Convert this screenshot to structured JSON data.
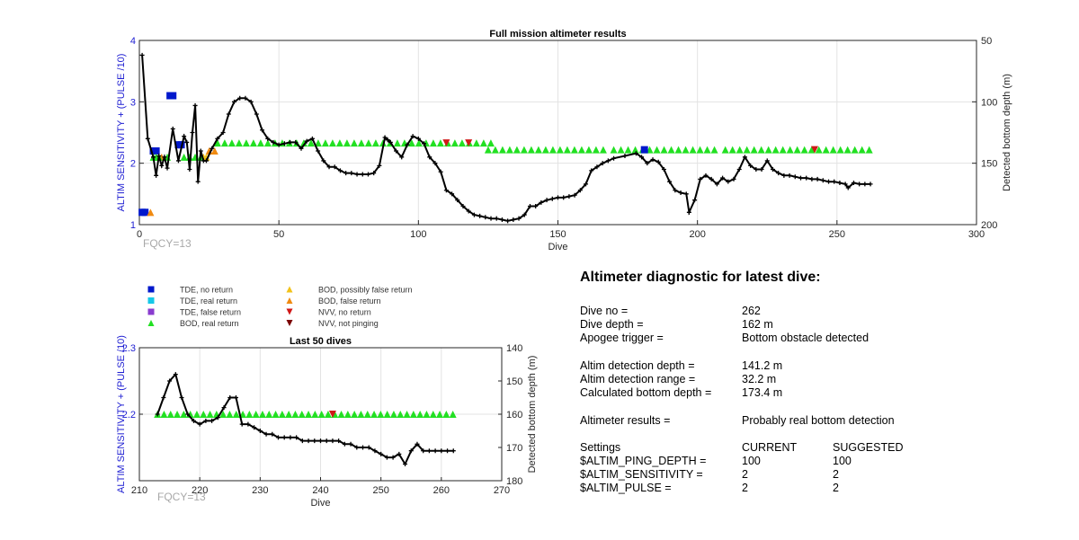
{
  "chart_data": [
    {
      "type": "scatter",
      "title": "Full mission altimeter results",
      "xlabel": "Dive",
      "ylabel": "ALTIM SENSITIVITY + (PULSE /10)",
      "y2label": "Detected bottom depth (m)",
      "xlim": [
        0,
        300
      ],
      "ylim": [
        1,
        4
      ],
      "y2lim": [
        50,
        200
      ],
      "y2_reversed": true,
      "xticks": [
        "0",
        "50",
        "100",
        "150",
        "200",
        "250",
        "300"
      ],
      "yticks": [
        "1",
        "2",
        "3",
        "4"
      ],
      "y2ticks": [
        "50",
        "100",
        "150",
        "200"
      ],
      "grid": true,
      "annotation": "FQCY=13",
      "depth_series": {
        "name": "Detected bottom depth",
        "x": [
          1,
          3,
          5,
          6,
          7,
          8,
          9,
          10,
          12,
          14,
          16,
          17,
          18,
          19,
          20,
          21,
          22,
          23,
          24,
          26,
          28,
          30,
          32,
          34,
          36,
          38,
          40,
          42,
          44,
          46,
          48,
          50,
          52,
          54,
          56,
          58,
          60,
          62,
          64,
          66,
          68,
          70,
          72,
          74,
          76,
          78,
          80,
          82,
          84,
          86,
          88,
          89,
          90,
          92,
          94,
          96,
          98,
          100,
          102,
          104,
          106,
          108,
          110,
          112,
          114,
          116,
          118,
          120,
          122,
          124,
          126,
          128,
          130,
          132,
          134,
          136,
          138,
          140,
          142,
          144,
          146,
          148,
          150,
          152,
          154,
          156,
          158,
          160,
          162,
          164,
          166,
          168,
          170,
          174,
          178,
          180,
          182,
          184,
          186,
          188,
          190,
          192,
          194,
          196,
          197,
          199,
          201,
          203,
          205,
          207,
          209,
          211,
          213,
          215,
          217,
          219,
          221,
          223,
          225,
          227,
          229,
          231,
          233,
          235,
          237,
          239,
          241,
          243,
          245,
          247,
          249,
          251,
          253,
          254,
          256,
          258,
          260,
          262
        ],
        "y": [
          62,
          130,
          145,
          160,
          144,
          152,
          145,
          154,
          122,
          148,
          128,
          133,
          155,
          125,
          103,
          165,
          140,
          148,
          148,
          138,
          130,
          125,
          110,
          100,
          97,
          97,
          100,
          110,
          123,
          130,
          133,
          135,
          134,
          133,
          133,
          138,
          132,
          130,
          140,
          148,
          153,
          153,
          156,
          158,
          158,
          159,
          159,
          159,
          158,
          152,
          129,
          131,
          133,
          140,
          145,
          135,
          128,
          130,
          134,
          145,
          150,
          157,
          172,
          175,
          180,
          185,
          189,
          192,
          193,
          194,
          195,
          195,
          196,
          197,
          196,
          195,
          192,
          185,
          185,
          182,
          180,
          179,
          178,
          178,
          177,
          176,
          172,
          167,
          156,
          153,
          150,
          148,
          146,
          144,
          142,
          145,
          150,
          147,
          149,
          155,
          165,
          172,
          174,
          175,
          190,
          180,
          163,
          160,
          163,
          167,
          162,
          165,
          163,
          155,
          145,
          152,
          155,
          155,
          148,
          155,
          158,
          160,
          160,
          161,
          162,
          162,
          163,
          163,
          164,
          165,
          165,
          166,
          167,
          170,
          166,
          167,
          167,
          167
        ]
      },
      "markers": [
        {
          "name": "BOD, real return",
          "start": 4,
          "end": 262,
          "step": 1.7,
          "y": 2.1,
          "gaps": [
            [
              33,
              262
            ]
          ]
        },
        {
          "name": "BOD, real return",
          "start": 28,
          "end": 126,
          "step": 1.7,
          "y": 2.33
        },
        {
          "name": "BOD, real return",
          "start": 125,
          "end": 167,
          "step": 1.7,
          "y": 2.22
        },
        {
          "name": "BOD, real return",
          "start": 170,
          "end": 208,
          "step": 1.7,
          "y": 2.22
        },
        {
          "name": "BOD, real return",
          "start": 210,
          "end": 262,
          "step": 1.7,
          "y": 2.22
        }
      ],
      "points": [
        {
          "cat": "TDE, no return",
          "x": 1,
          "y": 1.2
        },
        {
          "cat": "TDE, no return",
          "x": 2,
          "y": 1.2
        },
        {
          "cat": "TDE, no return",
          "x": 5,
          "y": 2.2
        },
        {
          "cat": "TDE, no return",
          "x": 6,
          "y": 2.2
        },
        {
          "cat": "TDE, no return",
          "x": 11,
          "y": 3.1
        },
        {
          "cat": "TDE, no return",
          "x": 12,
          "y": 3.1
        },
        {
          "cat": "TDE, no return",
          "x": 14,
          "y": 2.3
        },
        {
          "cat": "TDE, no return",
          "x": 15,
          "y": 2.3
        },
        {
          "cat": "TDE, no return",
          "x": 181,
          "y": 2.22
        },
        {
          "cat": "BOD, false return",
          "x": 4,
          "y": 1.2
        },
        {
          "cat": "BOD, false return",
          "x": 8,
          "y": 2.1
        },
        {
          "cat": "BOD, false return",
          "x": 25,
          "y": 2.2
        },
        {
          "cat": "BOD, false return",
          "x": 27,
          "y": 2.2
        },
        {
          "cat": "BOD, possibly false return",
          "x": 23,
          "y": 2.1
        },
        {
          "cat": "BOD, possibly false return",
          "x": 24,
          "y": 2.1
        },
        {
          "cat": "BOD, real return",
          "x": 5,
          "y": 2.1
        },
        {
          "cat": "BOD, real return",
          "x": 6,
          "y": 2.1
        },
        {
          "cat": "BOD, real return",
          "x": 7,
          "y": 2.1
        },
        {
          "cat": "BOD, real return",
          "x": 10,
          "y": 2.1
        },
        {
          "cat": "BOD, real return",
          "x": 16,
          "y": 2.1
        },
        {
          "cat": "BOD, real return",
          "x": 18,
          "y": 2.1
        },
        {
          "cat": "BOD, real return",
          "x": 20,
          "y": 2.1
        },
        {
          "cat": "BOD, real return",
          "x": 22,
          "y": 2.1
        },
        {
          "cat": "NVV, no return",
          "x": 110,
          "y": 2.33
        },
        {
          "cat": "NVV, no return",
          "x": 118,
          "y": 2.33
        },
        {
          "cat": "NVV, no return",
          "x": 242,
          "y": 2.22
        }
      ]
    },
    {
      "type": "scatter",
      "title": "Last 50 dives",
      "xlabel": "Dive",
      "ylabel": "ALTIM SENSITIVITY + (PULSE /10)",
      "y2label": "Detected bottom depth (m)",
      "xlim": [
        210,
        270
      ],
      "ylim": [
        2.1,
        2.3
      ],
      "y2lim": [
        140,
        180
      ],
      "y2_reversed": true,
      "xticks": [
        "210",
        "220",
        "230",
        "240",
        "250",
        "260",
        "270"
      ],
      "yticks": [
        "2.2",
        "2.3"
      ],
      "y2ticks": [
        "140",
        "150",
        "160",
        "170",
        "180"
      ],
      "grid": true,
      "annotation": "FQCY=13",
      "depth_series": {
        "name": "Detected bottom depth",
        "x": [
          213,
          214,
          215,
          216,
          217,
          218,
          219,
          220,
          221,
          222,
          223,
          224,
          225,
          226,
          227,
          228,
          229,
          230,
          231,
          232,
          233,
          234,
          235,
          236,
          237,
          238,
          239,
          240,
          241,
          242,
          243,
          244,
          245,
          246,
          247,
          248,
          249,
          250,
          251,
          252,
          253,
          254,
          255,
          256,
          257,
          258,
          259,
          260,
          261,
          262
        ],
        "y": [
          160,
          155,
          150,
          148,
          155,
          160,
          162,
          163,
          162,
          162,
          161,
          158,
          155,
          155,
          163,
          163,
          164,
          165,
          166,
          166,
          167,
          167,
          167,
          167,
          168,
          168,
          168,
          168,
          168,
          168,
          168,
          169,
          169,
          170,
          170,
          170,
          171,
          172,
          173,
          173,
          172,
          175,
          171,
          169,
          171,
          171,
          171,
          171,
          171,
          171
        ]
      },
      "markers": [
        {
          "name": "BOD, real return",
          "start": 213,
          "end": 262,
          "step": 1,
          "y": 2.2
        }
      ],
      "points": [
        {
          "cat": "NVV, no return",
          "x": 242,
          "y": 2.2
        }
      ]
    }
  ],
  "legend": {
    "items": [
      {
        "label": "TDE, no return",
        "color": "#0018cc",
        "shape": "square"
      },
      {
        "label": "TDE, real return",
        "color": "#16c8e8",
        "shape": "square"
      },
      {
        "label": "TDE, false return",
        "color": "#8a3ccf",
        "shape": "square"
      },
      {
        "label": "BOD, real return",
        "color": "#22e022",
        "shape": "triangle-up"
      },
      {
        "label": "BOD, possibly false return",
        "color": "#f2c21a",
        "shape": "triangle-up"
      },
      {
        "label": "BOD, false return",
        "color": "#f08a10",
        "shape": "triangle-up"
      },
      {
        "label": "NVV, no return",
        "color": "#d01818",
        "shape": "triangle-down"
      },
      {
        "label": "NVV, not pinging",
        "color": "#7a0000",
        "shape": "triangle-down"
      }
    ]
  },
  "colors": {
    "axis_left": "#1e1ed2",
    "depth_line": "#000000",
    "grid": "#e3e3e3",
    "annotation": "#a8a8a8"
  },
  "diagnostic": {
    "title": "Altimeter diagnostic for latest dive:",
    "rows": [
      {
        "label": "Dive no =",
        "value": "262"
      },
      {
        "label": "Dive depth =",
        "value": "162 m"
      },
      {
        "label": "Apogee trigger =",
        "value": "Bottom obstacle detected"
      },
      {
        "label": "Altim detection depth =",
        "value": "141.2 m"
      },
      {
        "label": "Altim detection range =",
        "value": "32.2 m"
      },
      {
        "label": "Calculated bottom depth =",
        "value": "173.4 m"
      },
      {
        "label": "Altimeter results =",
        "value": "Probably real bottom detection"
      }
    ],
    "settings": {
      "header": {
        "label": "Settings",
        "current": "CURRENT",
        "suggested": "SUGGESTED"
      },
      "rows": [
        {
          "label": "$ALTIM_PING_DEPTH =",
          "current": "100",
          "suggested": "100"
        },
        {
          "label": "$ALTIM_SENSITIVITY =",
          "current": "2",
          "suggested": "2"
        },
        {
          "label": "$ALTIM_PULSE =",
          "current": "2",
          "suggested": "2"
        }
      ]
    }
  }
}
